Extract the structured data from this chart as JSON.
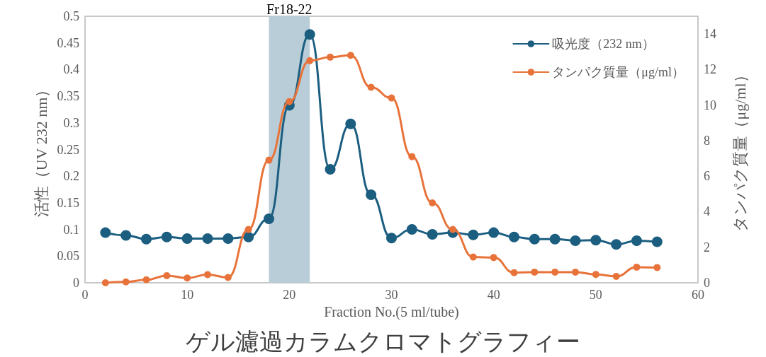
{
  "chart_data": {
    "type": "line",
    "title": "ゲル濾過カラムクロマトグラフィー",
    "xlabel": "Fraction No.(5 ml/tube)",
    "ylabel": "活性（UV 232 nm）",
    "y2label": "タンパク質量（μg/ml）",
    "x": [
      2,
      4,
      6,
      8,
      10,
      12,
      14,
      16,
      18,
      20,
      22,
      24,
      26,
      28,
      30,
      32,
      34,
      36,
      38,
      40,
      42,
      44,
      46,
      48,
      50,
      52,
      54,
      56
    ],
    "series": [
      {
        "name": "吸光度（232 nm）",
        "color": "#1b5e80",
        "values": [
          0.094,
          0.089,
          0.082,
          0.086,
          0.083,
          0.083,
          0.083,
          0.086,
          0.12,
          0.333,
          0.466,
          0.213,
          0.298,
          0.165,
          0.084,
          0.1,
          0.091,
          0.094,
          0.09,
          0.094,
          0.086,
          0.082,
          0.082,
          0.079,
          0.08,
          0.072,
          0.079,
          0.077
        ]
      },
      {
        "name": "タンパク質量（μg/ml）",
        "color": "#e8733a",
        "axis": "y2",
        "values": [
          0,
          0.05,
          0.17,
          0.4,
          0.27,
          0.46,
          0.3,
          3.0,
          6.9,
          10.2,
          12.5,
          12.7,
          12.8,
          11.0,
          10.4,
          7.1,
          4.5,
          3.0,
          1.45,
          1.42,
          0.57,
          0.6,
          0.6,
          0.6,
          0.47,
          0.36,
          0.88,
          0.86
        ]
      }
    ],
    "xlim": [
      0,
      60
    ],
    "xticks": [
      0,
      10,
      20,
      30,
      40,
      50,
      60
    ],
    "ylim": [
      0,
      0.5
    ],
    "yticks": [
      0,
      0.05,
      0.1,
      0.15,
      0.2,
      0.25,
      0.3,
      0.35,
      0.4,
      0.45,
      0.5
    ],
    "y2lim": [
      0,
      15
    ],
    "y2ticks": [
      0,
      2,
      4,
      6,
      8,
      10,
      12,
      14
    ],
    "bands": [
      {
        "axis": "x",
        "from": 18,
        "to": 22,
        "label": "Fr18-22",
        "color": "#b9cdd8"
      }
    ],
    "marker": "circle",
    "line_style": "solid",
    "grid": false,
    "legend": "top right"
  }
}
